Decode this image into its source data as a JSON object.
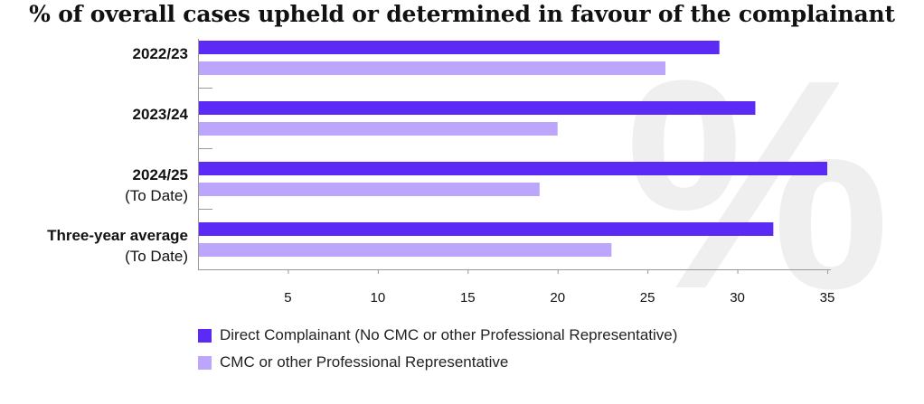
{
  "chart_data": {
    "type": "bar",
    "orientation": "horizontal",
    "title": "% of overall cases upheld or determined in favour of the complainant",
    "categories": [
      {
        "line1": "2022/23",
        "line2": ""
      },
      {
        "line1": "2023/24",
        "line2": ""
      },
      {
        "line1": "2024/25",
        "line2": "(To Date)"
      },
      {
        "line1": "Three-year average",
        "line2": "(To Date)"
      }
    ],
    "series": [
      {
        "name": "Direct Complainant (No CMC or other Professional Representative)",
        "color": "#5b2bf5",
        "values": [
          29,
          31,
          35,
          32
        ]
      },
      {
        "name": "CMC or other Professional Representative",
        "color": "#bba6fb",
        "values": [
          26,
          20,
          19,
          23
        ]
      }
    ],
    "xlim": [
      0,
      35
    ],
    "xticks": [
      5,
      10,
      15,
      20,
      25,
      30,
      35
    ],
    "grid": false,
    "legend_position": "bottom-left",
    "watermark": "%"
  }
}
